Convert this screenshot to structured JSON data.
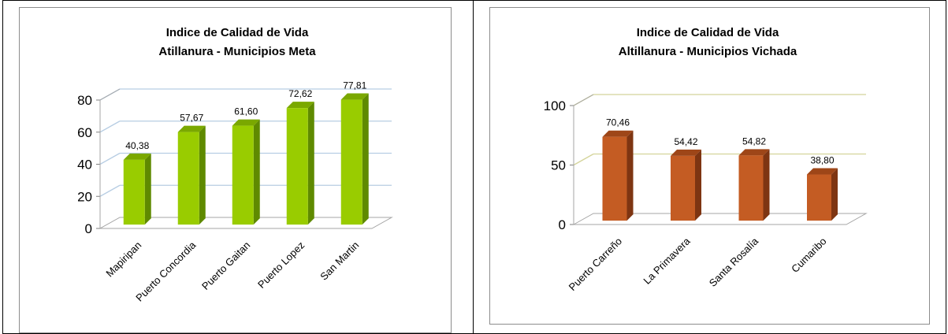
{
  "chart_data": [
    {
      "type": "bar",
      "title": "Indice de Calidad de Vida",
      "subtitle": "Atillanura - Municipios Meta",
      "categories": [
        "Mapiripan",
        "Puerto Concordia",
        "Puerto Gaitan",
        "Puerto Lopez",
        "San Martin"
      ],
      "values": [
        40.38,
        57.67,
        61.6,
        72.62,
        77.81
      ],
      "data_labels": [
        "40,38",
        "57,67",
        "61,60",
        "72,62",
        "77,81"
      ],
      "ylim": [
        0,
        80
      ],
      "yticks": [
        0,
        20,
        40,
        60,
        80
      ],
      "grid": true,
      "colors": {
        "front": "#99cc00",
        "side": "#5f8a00",
        "top": "#7aa800",
        "grid": "#b7cde3"
      }
    },
    {
      "type": "bar",
      "title": "Indice de Calidad de Vida",
      "subtitle": "Altillanura - Municipios Vichada",
      "categories": [
        "Puerto Carreño",
        "La Primavera",
        "Santa Rosalía",
        "Cumaribo"
      ],
      "values": [
        70.46,
        54.42,
        54.82,
        38.8
      ],
      "data_labels": [
        "70,46",
        "54,42",
        "54,82",
        "38,80"
      ],
      "ylim": [
        0,
        100
      ],
      "yticks": [
        0,
        50,
        100
      ],
      "grid": true,
      "colors": {
        "front": "#c45c23",
        "side": "#7e3512",
        "top": "#9e4618",
        "grid": "#d4d49a"
      }
    }
  ]
}
